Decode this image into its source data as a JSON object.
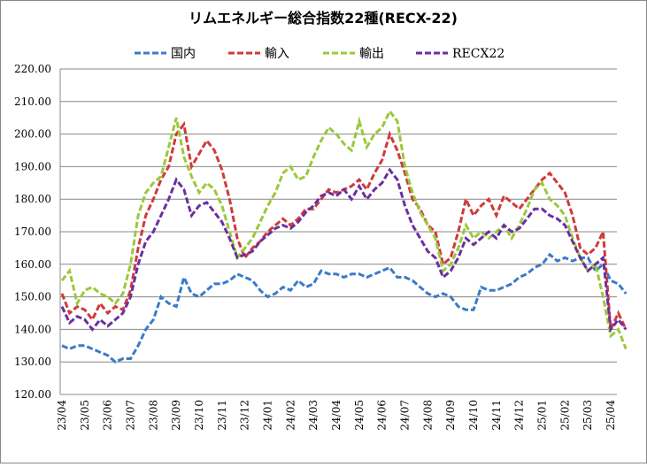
{
  "chart_data": {
    "type": "line",
    "title": "リムエネルギー総合指数22種(RECX-22)",
    "categories": [
      "23/04",
      null,
      null,
      "23/05",
      null,
      null,
      "23/06",
      null,
      null,
      "23/07",
      null,
      null,
      "23/08",
      null,
      null,
      "23/09",
      null,
      null,
      "23/10",
      null,
      null,
      "23/11",
      null,
      null,
      "23/12",
      null,
      null,
      "24/01",
      null,
      null,
      "24/02",
      null,
      null,
      "24/03",
      null,
      null,
      "24/04",
      null,
      null,
      "24/05",
      null,
      null,
      "24/06",
      null,
      null,
      "24/07",
      null,
      null,
      "24/08",
      null,
      null,
      "24/09",
      null,
      null,
      "24/10",
      null,
      null,
      "24/11",
      null,
      null,
      "24/12",
      null,
      null,
      "25/01",
      null,
      null,
      "25/02",
      null,
      null,
      "25/03",
      null,
      null,
      "25/04",
      null,
      null
    ],
    "series": [
      {
        "name": "国内",
        "color": "#3a7bc8",
        "values": [
          135,
          134,
          135,
          135,
          134,
          133,
          132,
          130,
          131,
          131,
          135,
          140,
          143,
          150,
          148,
          147,
          156,
          151,
          150,
          152,
          154,
          154,
          155,
          157,
          156,
          155,
          152,
          150,
          151,
          153,
          152,
          155,
          153,
          154,
          158,
          157,
          157,
          156,
          157,
          157,
          156,
          157,
          158,
          159,
          156,
          156,
          155,
          153,
          151,
          150,
          151,
          150,
          147,
          146,
          146,
          153,
          152,
          152,
          153,
          154,
          156,
          157,
          159,
          160,
          163,
          161,
          162,
          161,
          162,
          162,
          158,
          160,
          155,
          154,
          151
        ]
      },
      {
        "name": "輸入",
        "color": "#d03a3a",
        "values": [
          151,
          145,
          147,
          146,
          143,
          148,
          145,
          147,
          146,
          152,
          165,
          175,
          180,
          186,
          190,
          200,
          203,
          190,
          194,
          198,
          195,
          189,
          180,
          168,
          162,
          165,
          167,
          170,
          172,
          174,
          172,
          174,
          177,
          177,
          180,
          183,
          182,
          183,
          184,
          186,
          183,
          188,
          192,
          200,
          195,
          188,
          180,
          177,
          172,
          170,
          160,
          162,
          170,
          180,
          175,
          178,
          180,
          175,
          181,
          179,
          177,
          180,
          183,
          186,
          188,
          185,
          182,
          175,
          165,
          163,
          165,
          170,
          140,
          145,
          140
        ]
      },
      {
        "name": "輸出",
        "color": "#9bc83a",
        "values": [
          155,
          158,
          148,
          152,
          153,
          151,
          150,
          148,
          151,
          160,
          175,
          182,
          185,
          187,
          196,
          205,
          193,
          187,
          182,
          185,
          183,
          178,
          170,
          162,
          165,
          168,
          173,
          178,
          182,
          188,
          190,
          186,
          187,
          193,
          198,
          202,
          200,
          197,
          195,
          204,
          196,
          200,
          202,
          207,
          204,
          190,
          182,
          176,
          172,
          168,
          158,
          160,
          165,
          172,
          168,
          170,
          168,
          170,
          172,
          168,
          172,
          177,
          183,
          185,
          180,
          178,
          175,
          168,
          162,
          158,
          160,
          150,
          138,
          140,
          134
        ]
      },
      {
        "name": "RECX22",
        "color": "#6a2fa0",
        "values": [
          147,
          142,
          144,
          143,
          140,
          143,
          141,
          143,
          145,
          150,
          160,
          167,
          170,
          175,
          180,
          186,
          183,
          175,
          178,
          179,
          176,
          173,
          168,
          162,
          163,
          164,
          167,
          169,
          171,
          172,
          171,
          173,
          176,
          178,
          181,
          182,
          181,
          183,
          180,
          184,
          180,
          183,
          185,
          189,
          186,
          178,
          172,
          168,
          164,
          162,
          156,
          158,
          162,
          168,
          166,
          168,
          170,
          168,
          172,
          170,
          171,
          174,
          177,
          177,
          175,
          174,
          172,
          167,
          162,
          158,
          160,
          162,
          140,
          143,
          140
        ]
      }
    ],
    "ylim": [
      120,
      220
    ],
    "yticks": [
      {
        "value": 120,
        "label": "120.00"
      },
      {
        "value": 130,
        "label": "130.00"
      },
      {
        "value": 140,
        "label": "140.00"
      },
      {
        "value": 150,
        "label": "150.00"
      },
      {
        "value": 160,
        "label": "160.00"
      },
      {
        "value": 170,
        "label": "170.00"
      },
      {
        "value": 180,
        "label": "180.00"
      },
      {
        "value": 190,
        "label": "190.00"
      },
      {
        "value": 200,
        "label": "200.00"
      },
      {
        "value": 210,
        "label": "210.00"
      },
      {
        "value": 220,
        "label": "220.00"
      }
    ],
    "grid": true
  }
}
